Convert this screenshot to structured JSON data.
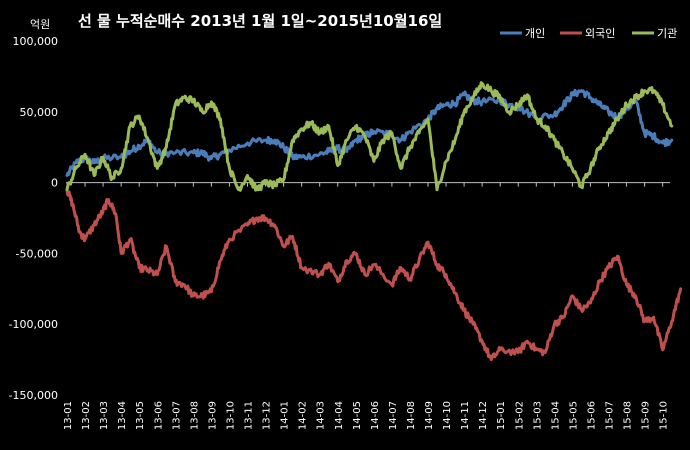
{
  "chart_data": {
    "type": "line",
    "title": "선 물 누적순매수 2013년 1월 1일~2015년10월16일",
    "unit_label": "억원",
    "ylim": [
      -150000,
      100000
    ],
    "yticks": [
      100000,
      50000,
      0,
      -50000,
      -100000,
      -150000
    ],
    "ytick_labels": [
      "100,000",
      "50,000",
      "0",
      "-50,000",
      "-100,000",
      "-150,000"
    ],
    "xlim": [
      0,
      33.5
    ],
    "categories": [
      "13-01",
      "13-02",
      "13-03",
      "13-04",
      "13-05",
      "13-06",
      "13-07",
      "13-08",
      "13-09",
      "13-10",
      "13-11",
      "13-12",
      "14-01",
      "14-02",
      "14-03",
      "14-04",
      "14-05",
      "14-06",
      "14-07",
      "14-08",
      "14-09",
      "14-10",
      "14-11",
      "14-12",
      "15-01",
      "15-02",
      "15-03",
      "15-04",
      "15-05",
      "15-06",
      "15-07",
      "15-08",
      "15-09",
      "15-10"
    ],
    "grid": false,
    "legend_position": "top-right",
    "series": [
      {
        "name": "개인",
        "color": "#4a7ebb",
        "points": [
          [
            0,
            5000
          ],
          [
            0.5,
            14000
          ],
          [
            1,
            17000
          ],
          [
            1.5,
            14000
          ],
          [
            2,
            17000
          ],
          [
            3,
            18000
          ],
          [
            3.5,
            22000
          ],
          [
            4,
            26000
          ],
          [
            4.5,
            30000
          ],
          [
            5,
            21000
          ],
          [
            6,
            21000
          ],
          [
            7,
            21000
          ],
          [
            7.5,
            21000
          ],
          [
            8,
            17000
          ],
          [
            8.5,
            20000
          ],
          [
            9,
            23000
          ],
          [
            10,
            28000
          ],
          [
            11,
            30000
          ],
          [
            11.5,
            30000
          ],
          [
            12,
            25000
          ],
          [
            12.5,
            18000
          ],
          [
            13,
            18000
          ],
          [
            14,
            20000
          ],
          [
            14.5,
            22000
          ],
          [
            15,
            24000
          ],
          [
            15.5,
            22000
          ],
          [
            16,
            30000
          ],
          [
            16.5,
            33000
          ],
          [
            17,
            36000
          ],
          [
            18,
            34000
          ],
          [
            18.5,
            30000
          ],
          [
            19,
            36000
          ],
          [
            20,
            45000
          ],
          [
            20.5,
            52000
          ],
          [
            21,
            55000
          ],
          [
            21.5,
            56000
          ],
          [
            22,
            62000
          ],
          [
            22.5,
            58000
          ],
          [
            23,
            57000
          ],
          [
            24,
            58000
          ],
          [
            24.5,
            55000
          ],
          [
            25,
            53000
          ],
          [
            26,
            46000
          ],
          [
            27,
            48000
          ],
          [
            27.5,
            55000
          ],
          [
            28,
            62000
          ],
          [
            28.5,
            65000
          ],
          [
            29,
            60000
          ],
          [
            29.5,
            55000
          ],
          [
            30,
            50000
          ],
          [
            30.5,
            46000
          ],
          [
            31,
            52000
          ],
          [
            31.5,
            58000
          ],
          [
            32,
            35000
          ],
          [
            32.5,
            33000
          ],
          [
            33,
            28000
          ],
          [
            33.5,
            30000
          ]
        ]
      },
      {
        "name": "외국인",
        "color": "#c0504d",
        "points": [
          [
            0,
            -5000
          ],
          [
            0.3,
            -15000
          ],
          [
            0.7,
            -35000
          ],
          [
            1,
            -40000
          ],
          [
            1.5,
            -30000
          ],
          [
            2,
            -20000
          ],
          [
            2.3,
            -12000
          ],
          [
            2.7,
            -22000
          ],
          [
            3,
            -50000
          ],
          [
            3.5,
            -40000
          ],
          [
            4,
            -60000
          ],
          [
            4.5,
            -62000
          ],
          [
            5,
            -65000
          ],
          [
            5.5,
            -45000
          ],
          [
            6,
            -70000
          ],
          [
            6.5,
            -72000
          ],
          [
            7,
            -80000
          ],
          [
            7.5,
            -80000
          ],
          [
            8,
            -77000
          ],
          [
            8.5,
            -55000
          ],
          [
            9,
            -40000
          ],
          [
            10,
            -30000
          ],
          [
            10.5,
            -25000
          ],
          [
            11,
            -25000
          ],
          [
            11.5,
            -30000
          ],
          [
            12,
            -45000
          ],
          [
            12.5,
            -38000
          ],
          [
            13,
            -60000
          ],
          [
            14,
            -65000
          ],
          [
            14.5,
            -57000
          ],
          [
            15,
            -70000
          ],
          [
            15.5,
            -55000
          ],
          [
            16,
            -50000
          ],
          [
            16.5,
            -65000
          ],
          [
            17,
            -58000
          ],
          [
            18,
            -72000
          ],
          [
            18.5,
            -60000
          ],
          [
            19,
            -68000
          ],
          [
            19.5,
            -55000
          ],
          [
            20,
            -42000
          ],
          [
            20.5,
            -58000
          ],
          [
            21,
            -65000
          ],
          [
            21.5,
            -78000
          ],
          [
            22,
            -90000
          ],
          [
            22.5,
            -100000
          ],
          [
            23,
            -112000
          ],
          [
            23.5,
            -125000
          ],
          [
            24,
            -118000
          ],
          [
            25,
            -120000
          ],
          [
            25.5,
            -112000
          ],
          [
            26,
            -118000
          ],
          [
            26.5,
            -120000
          ],
          [
            27,
            -100000
          ],
          [
            27.5,
            -95000
          ],
          [
            28,
            -80000
          ],
          [
            28.5,
            -90000
          ],
          [
            29,
            -85000
          ],
          [
            29.5,
            -70000
          ],
          [
            30,
            -60000
          ],
          [
            30.5,
            -52000
          ],
          [
            31,
            -72000
          ],
          [
            31.5,
            -80000
          ],
          [
            32,
            -98000
          ],
          [
            32.5,
            -95000
          ],
          [
            33,
            -118000
          ],
          [
            33.5,
            -98000
          ],
          [
            34,
            -75000
          ]
        ]
      },
      {
        "name": "기관",
        "color": "#9bbb59",
        "points": [
          [
            0,
            -5000
          ],
          [
            0.5,
            10000
          ],
          [
            1,
            20000
          ],
          [
            1.5,
            5000
          ],
          [
            2,
            18000
          ],
          [
            2.5,
            3000
          ],
          [
            3,
            10000
          ],
          [
            3.5,
            40000
          ],
          [
            4,
            47000
          ],
          [
            4.5,
            30000
          ],
          [
            5,
            10000
          ],
          [
            5.5,
            25000
          ],
          [
            6,
            55000
          ],
          [
            6.5,
            60000
          ],
          [
            7,
            58000
          ],
          [
            7.5,
            50000
          ],
          [
            8,
            57000
          ],
          [
            8.5,
            45000
          ],
          [
            9,
            10000
          ],
          [
            9.5,
            -5000
          ],
          [
            10,
            5000
          ],
          [
            10.5,
            -5000
          ],
          [
            11,
            0
          ],
          [
            11.5,
            -2000
          ],
          [
            12,
            2000
          ],
          [
            12.5,
            30000
          ],
          [
            13,
            38000
          ],
          [
            13.5,
            42000
          ],
          [
            14,
            35000
          ],
          [
            14.5,
            40000
          ],
          [
            15,
            12000
          ],
          [
            15.5,
            30000
          ],
          [
            16,
            40000
          ],
          [
            16.5,
            33000
          ],
          [
            17,
            15000
          ],
          [
            17.5,
            30000
          ],
          [
            18,
            35000
          ],
          [
            18.5,
            10000
          ],
          [
            19,
            25000
          ],
          [
            19.5,
            35000
          ],
          [
            20,
            45000
          ],
          [
            20.5,
            -5000
          ],
          [
            21,
            15000
          ],
          [
            21.5,
            30000
          ],
          [
            22,
            50000
          ],
          [
            22.5,
            60000
          ],
          [
            23,
            70000
          ],
          [
            23.5,
            65000
          ],
          [
            24,
            60000
          ],
          [
            24.5,
            50000
          ],
          [
            25,
            55000
          ],
          [
            25.5,
            62000
          ],
          [
            26,
            45000
          ],
          [
            26.5,
            40000
          ],
          [
            27,
            30000
          ],
          [
            27.5,
            20000
          ],
          [
            28,
            10000
          ],
          [
            28.5,
            -3000
          ],
          [
            29,
            10000
          ],
          [
            29.5,
            25000
          ],
          [
            30,
            35000
          ],
          [
            30.5,
            45000
          ],
          [
            31,
            55000
          ],
          [
            31.5,
            60000
          ],
          [
            32,
            65000
          ],
          [
            32.5,
            65000
          ],
          [
            33,
            55000
          ],
          [
            33.5,
            40000
          ]
        ]
      }
    ]
  }
}
